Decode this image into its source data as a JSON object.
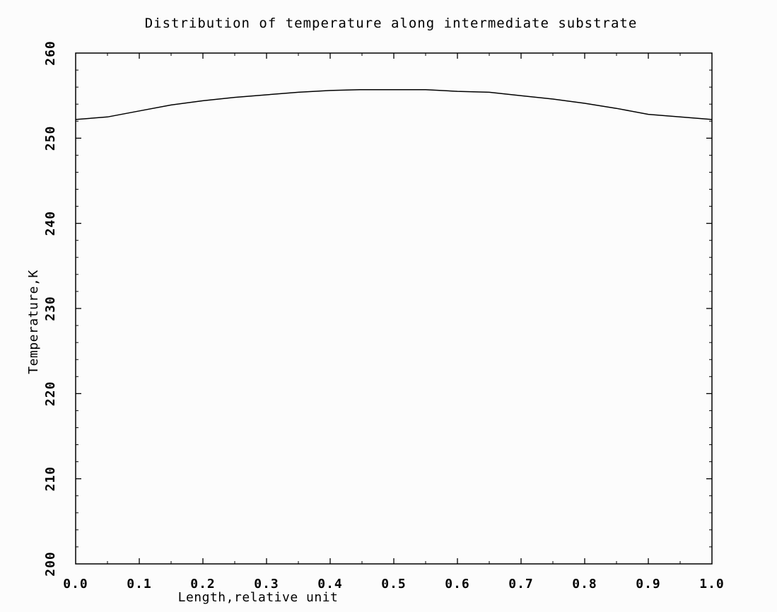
{
  "chart_data": {
    "type": "line",
    "title": "Distribution of temperature along intermediate substrate",
    "xlabel": "Length,relative unit",
    "ylabel": "Temperature,K",
    "xlim": [
      0.0,
      1.0
    ],
    "ylim": [
      200,
      260
    ],
    "x_ticks": [
      "0.0",
      "0.1",
      "0.2",
      "0.3",
      "0.4",
      "0.5",
      "0.6",
      "0.7",
      "0.8",
      "0.9",
      "1.0"
    ],
    "y_ticks": [
      "200",
      "210",
      "220",
      "230",
      "240",
      "250",
      "260"
    ],
    "grid": false,
    "series": [
      {
        "color": "#000000",
        "x": [
          0.0,
          0.05,
          0.1,
          0.15,
          0.2,
          0.25,
          0.3,
          0.35,
          0.4,
          0.45,
          0.5,
          0.55,
          0.6,
          0.65,
          0.7,
          0.75,
          0.8,
          0.85,
          0.9,
          0.95,
          1.0
        ],
        "y": [
          252.2,
          252.5,
          253.2,
          253.9,
          254.4,
          254.8,
          255.1,
          255.4,
          255.6,
          255.7,
          255.7,
          255.7,
          255.5,
          255.4,
          255.0,
          254.6,
          254.1,
          253.5,
          252.8,
          252.5,
          252.2
        ]
      }
    ]
  }
}
